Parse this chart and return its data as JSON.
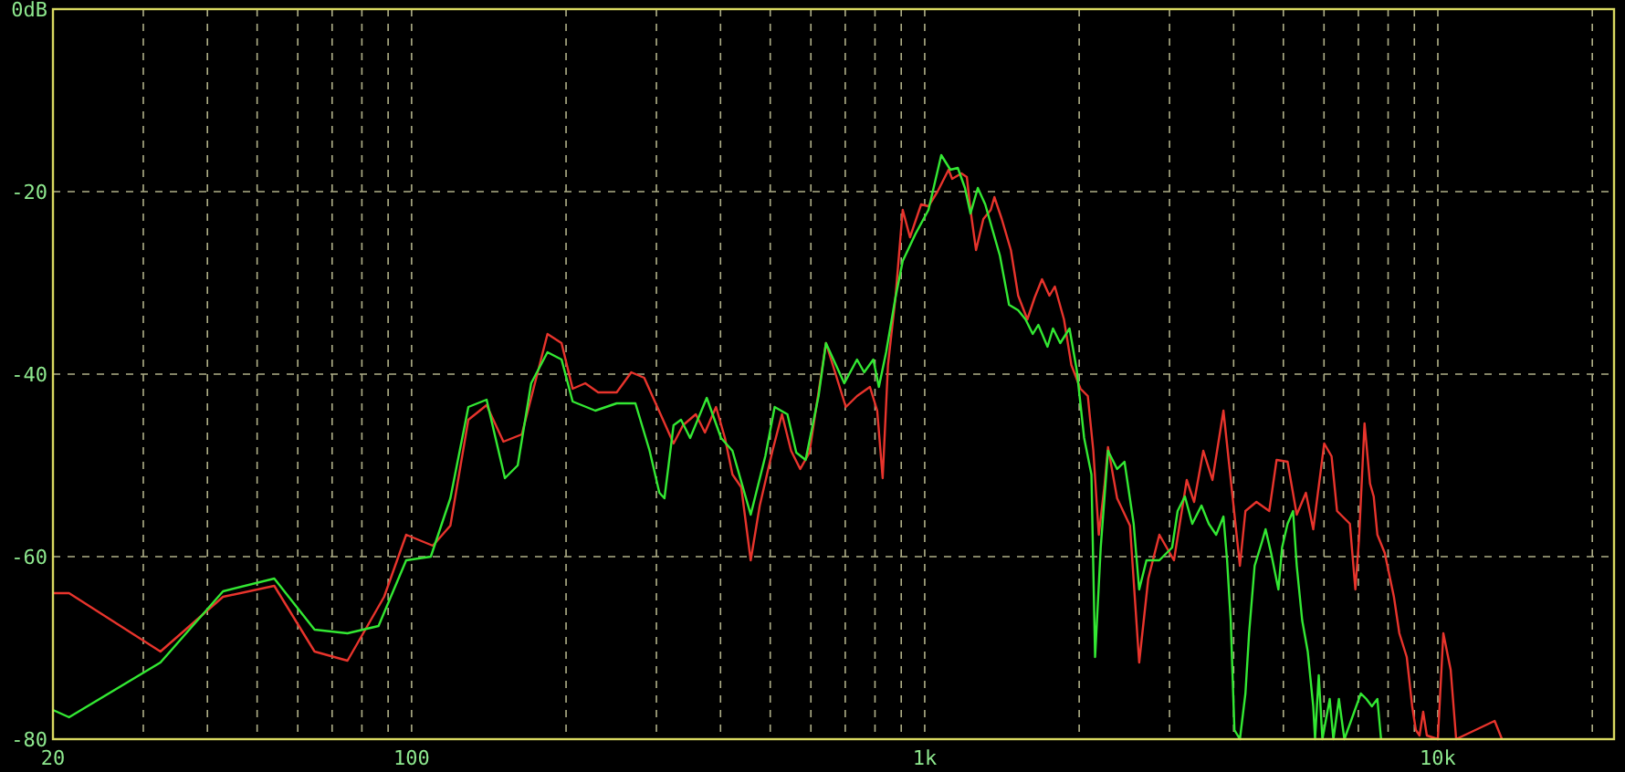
{
  "chart_data": {
    "type": "line",
    "log": "x",
    "grid": true,
    "line_style": "solid",
    "xlim": [
      20,
      22050
    ],
    "ylim": [
      -80,
      0
    ],
    "xticks": [
      20,
      {
        "value": 30,
        "label": null
      },
      {
        "value": 40,
        "label": null
      },
      {
        "value": 50,
        "label": null
      },
      {
        "value": 60,
        "label": null
      },
      {
        "value": 70,
        "label": null
      },
      {
        "value": 80,
        "label": null
      },
      {
        "value": 90,
        "label": null
      },
      100,
      {
        "value": 200,
        "label": null
      },
      {
        "value": 300,
        "label": null
      },
      {
        "value": 400,
        "label": null
      },
      {
        "value": 500,
        "label": null
      },
      {
        "value": 600,
        "label": null
      },
      {
        "value": 700,
        "label": null
      },
      {
        "value": 800,
        "label": null
      },
      {
        "value": 900,
        "label": null
      },
      {
        "value": 1000,
        "label": "1k"
      },
      {
        "value": 2000,
        "label": null
      },
      {
        "value": 3000,
        "label": null
      },
      {
        "value": 4000,
        "label": null
      },
      {
        "value": 5000,
        "label": null
      },
      {
        "value": 6000,
        "label": null
      },
      {
        "value": 7000,
        "label": null
      },
      {
        "value": 8000,
        "label": null
      },
      {
        "value": 9000,
        "label": null
      },
      {
        "value": 10000,
        "label": "10k"
      },
      {
        "value": 20000,
        "label": null
      }
    ],
    "yticks": [
      -80,
      -60,
      -40,
      -20,
      {
        "value": 0,
        "label": "0dB"
      }
    ],
    "series": [
      {
        "color": "#e8342c",
        "x": [
          20,
          21.5,
          32.4,
          42.9,
          54,
          64.7,
          75,
          88.4,
          97.6,
          110,
          119,
          129,
          140,
          151,
          164,
          184,
          196,
          206,
          218,
          231,
          251,
          268,
          284,
          309,
          324,
          338,
          358,
          373,
          392,
          408,
          422,
          439,
          458,
          477,
          505,
          527,
          549,
          572,
          596,
          642,
          702,
          738,
          782,
          808,
          828,
          848,
          877,
          906,
          936,
          984,
          1017,
          1059,
          1113,
          1131,
          1179,
          1208,
          1228,
          1259,
          1301,
          1345,
          1367,
          1413,
          1472,
          1521,
          1585,
          1638,
          1693,
          1750,
          1793,
          1868,
          1931,
          2012,
          2079,
          2131,
          2184,
          2239,
          2276,
          2371,
          2512,
          2618,
          2727,
          2866,
          3060,
          3241,
          3350,
          3491,
          3637,
          3821,
          4114,
          4217,
          4431,
          4693,
          4850,
          5095,
          5309,
          5532,
          5717,
          6006,
          6207,
          6362,
          6739,
          6907,
          7022,
          7197,
          7377,
          7499,
          7624,
          7880,
          8211,
          8414,
          8698,
          8913,
          9061,
          9211,
          9363,
          9519,
          10000,
          10250,
          10593,
          10857,
          12904,
          13335
        ],
        "values": [
          -64,
          -64,
          -70.4,
          -64.4,
          -63.2,
          -70.4,
          -71.4,
          -64.4,
          -57.6,
          -58.8,
          -56.6,
          -45,
          -43.4,
          -47.4,
          -46.6,
          -35.6,
          -36.6,
          -41.6,
          -41,
          -42,
          -42,
          -39.8,
          -40.4,
          -45,
          -47.6,
          -45.6,
          -44.4,
          -46.4,
          -43.6,
          -47,
          -51,
          -52.4,
          -60.4,
          -54.4,
          -48.4,
          -44.4,
          -48.4,
          -50.4,
          -48.6,
          -36.6,
          -43.6,
          -42.4,
          -41.4,
          -44,
          -51.4,
          -39,
          -31.6,
          -22,
          -25,
          -21.4,
          -21.6,
          -20,
          -17.6,
          -18.6,
          -18,
          -18.4,
          -22,
          -26.4,
          -23,
          -22,
          -20.6,
          -23,
          -26.4,
          -31.4,
          -34,
          -31.6,
          -29.6,
          -31.4,
          -30.4,
          -34,
          -39,
          -41.6,
          -42.4,
          -48.4,
          -57.6,
          -52.4,
          -48,
          -53.6,
          -56.6,
          -71.6,
          -62.4,
          -57.6,
          -60.4,
          -51.6,
          -54,
          -48.4,
          -51.6,
          -44,
          -61,
          -55,
          -54,
          -55,
          -49.4,
          -49.6,
          -55.4,
          -53,
          -57,
          -47.6,
          -49,
          -55,
          -56.4,
          -63.6,
          -58,
          -45.4,
          -52,
          -53.4,
          -57.6,
          -59.6,
          -64.4,
          -68.4,
          -71,
          -76.4,
          -79,
          -79.6,
          -77,
          -79.6,
          -80,
          -68.4,
          -72.4,
          -80,
          -78,
          -80
        ]
      },
      {
        "color": "#33e833",
        "x": [
          20,
          21.5,
          32.4,
          42.9,
          54,
          64.7,
          75,
          86.2,
          97.6,
          109,
          119,
          129,
          140,
          152,
          161,
          171,
          184,
          196,
          206,
          228,
          251,
          273,
          291,
          304,
          311,
          324,
          335,
          349,
          376,
          401,
          422,
          458,
          489,
          510,
          540,
          562,
          586,
          621,
          642,
          697,
          738,
          762,
          794,
          814,
          841,
          877,
          906,
          960,
          1017,
          1077,
          1122,
          1160,
          1198,
          1228,
          1269,
          1312,
          1401,
          1460,
          1521,
          1572,
          1624,
          1665,
          1735,
          1778,
          1837,
          1915,
          1979,
          2045,
          2113,
          2148,
          2203,
          2276,
          2371,
          2451,
          2554,
          2618,
          2705,
          2866,
          3035,
          3111,
          3214,
          3322,
          3462,
          3578,
          3698,
          3821,
          3884,
          3948,
          4014,
          4114,
          4217,
          4287,
          4395,
          4541,
          4616,
          4732,
          4890,
          4971,
          5095,
          5223,
          5309,
          5441,
          5578,
          5717,
          5764,
          5860,
          5957,
          6156,
          6258,
          6415,
          6575,
          7079,
          7256,
          7437,
          7624,
          7751
        ],
        "values": [
          -76.8,
          -77.6,
          -71.6,
          -63.8,
          -62.4,
          -68,
          -68.4,
          -67.6,
          -60.4,
          -60,
          -53.6,
          -43.6,
          -42.8,
          -51.4,
          -50,
          -41,
          -37.6,
          -38.4,
          -43,
          -44,
          -43.2,
          -43.2,
          -48.4,
          -53,
          -53.6,
          -45.6,
          -45,
          -47,
          -42.6,
          -47,
          -48.4,
          -55.4,
          -49,
          -43.6,
          -44.4,
          -48.6,
          -49.4,
          -42.4,
          -36.6,
          -41,
          -38.4,
          -39.8,
          -38.4,
          -41.4,
          -37.6,
          -31.6,
          -27.6,
          -24.6,
          -22,
          -16,
          -17.6,
          -17.4,
          -19.6,
          -22.4,
          -19.6,
          -21.4,
          -27,
          -32.4,
          -33,
          -34,
          -35.6,
          -34.6,
          -37,
          -35,
          -36.6,
          -35,
          -39.6,
          -47,
          -51,
          -71,
          -59,
          -48.4,
          -50.4,
          -49.6,
          -56.4,
          -63.6,
          -60.4,
          -60.4,
          -59,
          -55,
          -53.4,
          -56.4,
          -54.4,
          -56.4,
          -57.6,
          -55.6,
          -60.4,
          -67,
          -79,
          -80,
          -75,
          -68.4,
          -61,
          -58.4,
          -57,
          -59.6,
          -63.6,
          -59,
          -56.4,
          -55,
          -61,
          -67,
          -70.4,
          -76.4,
          -80,
          -73,
          -80,
          -75.6,
          -80,
          -75.6,
          -80,
          -75,
          -75.6,
          -76.4,
          -75.6,
          -80
        ]
      }
    ]
  }
}
